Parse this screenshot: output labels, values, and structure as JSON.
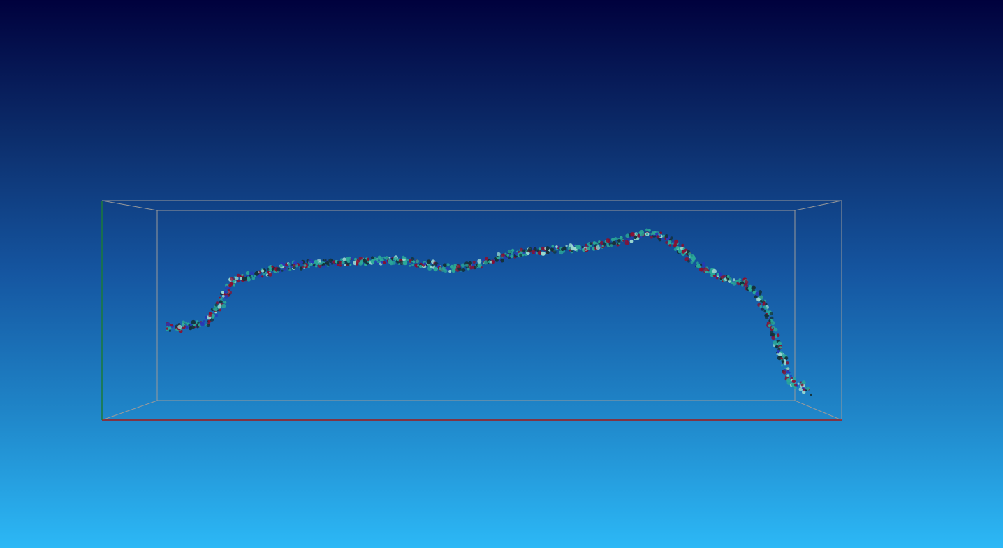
{
  "viewer": {
    "background_top": "#00013d",
    "background_bottom": "#2cb8f6",
    "box_color": "#9a9a9a",
    "axis_colors": {
      "x": "#a01818",
      "y": "#1a7a3a"
    },
    "atom_colors": {
      "carbon": "#2aa898",
      "oxygen": "#8a1030",
      "nitrogen": "#2838b8",
      "hydrogen": "#9ad8d0",
      "dark": "#14323a"
    }
  }
}
